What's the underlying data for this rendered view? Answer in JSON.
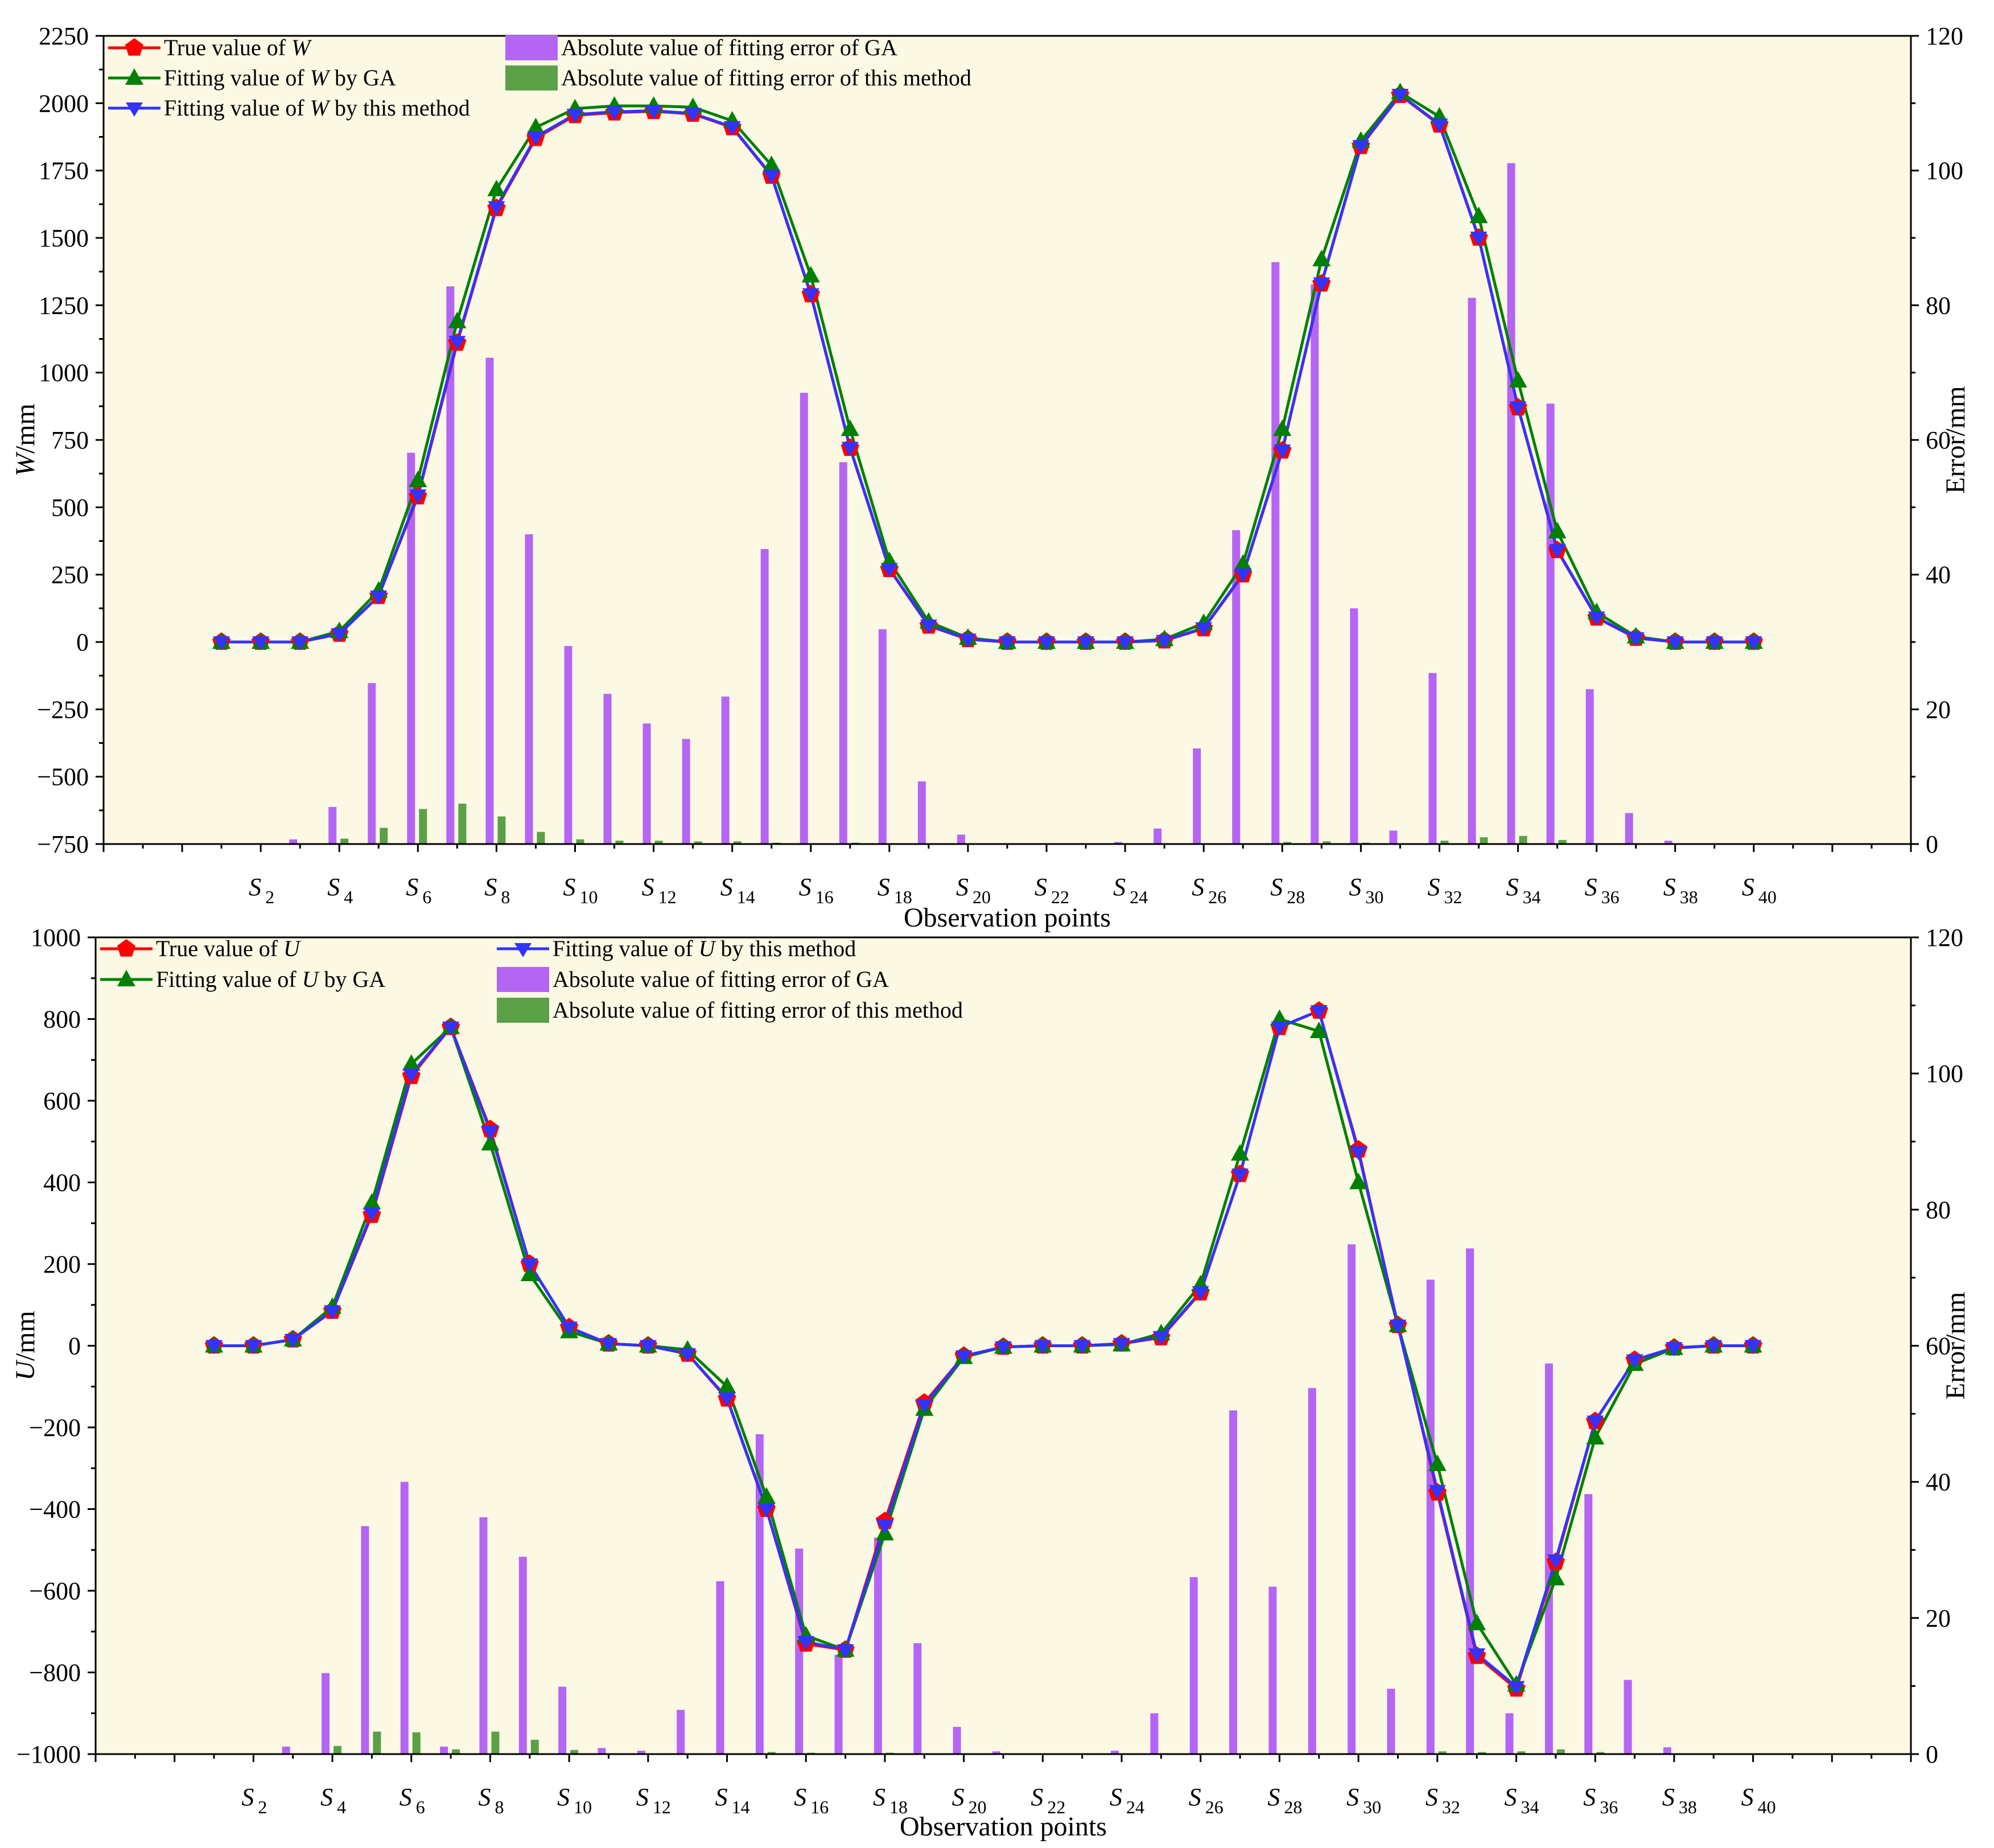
{
  "figure": {
    "xlabel": "Observation points"
  },
  "colors": {
    "true": "#ff0000",
    "ga": "#008000",
    "method": "#3333ff",
    "bar_ga": "#b565f3",
    "bar_method": "#5aa047",
    "plot_bg": "#fbf8e4"
  },
  "chart_data": [
    {
      "name": "W",
      "type": "line+bar",
      "title": "",
      "xlabel": "Observation points",
      "ylabel_var": "W",
      "ylabel_unit": "/mm",
      "y2label": "Error/mm",
      "ylim": [
        -750,
        2250
      ],
      "yticks": [
        "2250",
        "2000",
        "1750",
        "1500",
        "1250",
        "1000",
        "750",
        "500",
        "250",
        "0",
        "−250",
        "−500",
        "−750"
      ],
      "yticks_values": [
        2250,
        2000,
        1750,
        1500,
        1250,
        1000,
        750,
        500,
        250,
        0,
        -250,
        -500,
        -750
      ],
      "y2lim": [
        0,
        120
      ],
      "y2ticks": [
        "120",
        "100",
        "80",
        "60",
        "40",
        "20",
        "0"
      ],
      "y2ticks_values": [
        120,
        100,
        80,
        60,
        40,
        20,
        0
      ],
      "xlim": [
        -2,
        44
      ],
      "x": [
        1,
        2,
        3,
        4,
        5,
        6,
        7,
        8,
        9,
        10,
        11,
        12,
        13,
        14,
        15,
        16,
        17,
        18,
        19,
        20,
        21,
        22,
        23,
        24,
        25,
        26,
        27,
        28,
        29,
        30,
        31,
        32,
        33,
        34,
        35,
        36,
        37,
        38,
        39,
        40
      ],
      "xticks": [
        {
          "x": 2,
          "base": "S",
          "sub": "2"
        },
        {
          "x": 4,
          "base": "S",
          "sub": "4"
        },
        {
          "x": 6,
          "base": "S",
          "sub": "6"
        },
        {
          "x": 8,
          "base": "S",
          "sub": "8"
        },
        {
          "x": 10,
          "base": "S",
          "sub": "10"
        },
        {
          "x": 12,
          "base": "S",
          "sub": "12"
        },
        {
          "x": 14,
          "base": "S",
          "sub": "14"
        },
        {
          "x": 16,
          "base": "S",
          "sub": "16"
        },
        {
          "x": 18,
          "base": "S",
          "sub": "18"
        },
        {
          "x": 20,
          "base": "S",
          "sub": "20"
        },
        {
          "x": 22,
          "base": "S",
          "sub": "22"
        },
        {
          "x": 24,
          "base": "S",
          "sub": "24"
        },
        {
          "x": 26,
          "base": "S",
          "sub": "26"
        },
        {
          "x": 28,
          "base": "S",
          "sub": "28"
        },
        {
          "x": 30,
          "base": "S",
          "sub": "30"
        },
        {
          "x": 32,
          "base": "S",
          "sub": "32"
        },
        {
          "x": 34,
          "base": "S",
          "sub": "34"
        },
        {
          "x": 36,
          "base": "S",
          "sub": "36"
        },
        {
          "x": 38,
          "base": "S",
          "sub": "38"
        },
        {
          "x": 40,
          "base": "S",
          "sub": "40"
        }
      ],
      "legend": [
        {
          "key": "true",
          "pre": "True value of ",
          "var": "W",
          "post": ""
        },
        {
          "key": "ga",
          "pre": "Fitting value of ",
          "var": "W",
          "post": " by GA"
        },
        {
          "key": "method",
          "pre": "Fitting value of ",
          "var": "W",
          "post": " by this method"
        },
        {
          "key": "bar_ga",
          "pre": "Absolute value of fitting error of GA",
          "var": "",
          "post": ""
        },
        {
          "key": "bar_method",
          "pre": "Absolute value of fitting error of this method",
          "var": "",
          "post": ""
        }
      ],
      "series": [
        {
          "name": "True value of W",
          "key": "true",
          "values": [
            0,
            0,
            0,
            30,
            170,
            540,
            1110,
            1610,
            1870,
            1955,
            1965,
            1970,
            1960,
            1910,
            1730,
            1290,
            720,
            270,
            60,
            10,
            0,
            0,
            0,
            0,
            5,
            50,
            250,
            710,
            1330,
            1840,
            2030,
            1920,
            1500,
            870,
            340,
            90,
            15,
            0,
            0,
            0
          ]
        },
        {
          "name": "Fitting value of W by GA",
          "key": "ga",
          "values": [
            0,
            0,
            0,
            40,
            190,
            600,
            1190,
            1680,
            1910,
            1980,
            1990,
            1990,
            1985,
            1935,
            1770,
            1360,
            790,
            300,
            75,
            15,
            0,
            0,
            0,
            0,
            10,
            70,
            290,
            790,
            1420,
            1860,
            2040,
            1950,
            1580,
            970,
            410,
            110,
            20,
            0,
            0,
            0
          ]
        },
        {
          "name": "Fitting value of W by this method",
          "key": "method",
          "values": [
            0,
            0,
            0,
            30,
            170,
            545,
            1115,
            1615,
            1875,
            1958,
            1968,
            1972,
            1962,
            1912,
            1732,
            1292,
            722,
            272,
            62,
            10,
            0,
            0,
            0,
            0,
            5,
            52,
            252,
            712,
            1332,
            1842,
            2032,
            1922,
            1502,
            872,
            342,
            92,
            15,
            0,
            0,
            0
          ]
        }
      ],
      "bars": [
        {
          "name": "Absolute value of fitting error of GA",
          "key": "bar_ga",
          "values": [
            0,
            0,
            0.7,
            5.5,
            23.9,
            58.1,
            82.8,
            72.2,
            46.0,
            29.4,
            22.3,
            17.9,
            15.6,
            21.9,
            43.8,
            67.0,
            56.7,
            31.9,
            9.3,
            1.4,
            0,
            0,
            0,
            0.3,
            2.3,
            14.2,
            46.6,
            86.4,
            83.1,
            35.0,
            2.0,
            25.4,
            81.1,
            101.1,
            65.4,
            23.0,
            4.6,
            0.5,
            0,
            0
          ]
        },
        {
          "name": "Absolute value of fitting error of this method",
          "key": "bar_method",
          "values": [
            0,
            0,
            0,
            0.8,
            2.4,
            5.2,
            6.0,
            4.1,
            1.8,
            0.7,
            0.5,
            0.5,
            0.4,
            0.4,
            0.2,
            0.1,
            0.2,
            0.1,
            0,
            0,
            0,
            0,
            0,
            0,
            0,
            0.1,
            0.1,
            0.3,
            0.4,
            0.2,
            0.1,
            0.5,
            1.0,
            1.2,
            0.6,
            0.1,
            0,
            0,
            0,
            0
          ]
        }
      ]
    },
    {
      "name": "U",
      "type": "line+bar",
      "title": "",
      "xlabel": "Observation points",
      "ylabel_var": "U",
      "ylabel_unit": "/mm",
      "y2label": "Error/mm",
      "ylim": [
        -1000,
        1000
      ],
      "yticks": [
        "1000",
        "800",
        "600",
        "400",
        "200",
        "0",
        "−200",
        "−400",
        "−600",
        "−800",
        "−1000"
      ],
      "yticks_values": [
        1000,
        800,
        600,
        400,
        200,
        0,
        -200,
        -400,
        -600,
        -800,
        -1000
      ],
      "y2lim": [
        0,
        120
      ],
      "y2ticks": [
        "120",
        "100",
        "80",
        "60",
        "40",
        "20",
        "0"
      ],
      "y2ticks_values": [
        120,
        100,
        80,
        60,
        40,
        20,
        0
      ],
      "xlim": [
        -2,
        44
      ],
      "x": [
        1,
        2,
        3,
        4,
        5,
        6,
        7,
        8,
        9,
        10,
        11,
        12,
        13,
        14,
        15,
        16,
        17,
        18,
        19,
        20,
        21,
        22,
        23,
        24,
        25,
        26,
        27,
        28,
        29,
        30,
        31,
        32,
        33,
        34,
        35,
        36,
        37,
        38,
        39,
        40
      ],
      "xticks": [
        {
          "x": 2,
          "base": "S",
          "sub": "2"
        },
        {
          "x": 4,
          "base": "S",
          "sub": "4"
        },
        {
          "x": 6,
          "base": "S",
          "sub": "6"
        },
        {
          "x": 8,
          "base": "S",
          "sub": "8"
        },
        {
          "x": 10,
          "base": "S",
          "sub": "10"
        },
        {
          "x": 12,
          "base": "S",
          "sub": "12"
        },
        {
          "x": 14,
          "base": "S",
          "sub": "14"
        },
        {
          "x": 16,
          "base": "S",
          "sub": "16"
        },
        {
          "x": 18,
          "base": "S",
          "sub": "18"
        },
        {
          "x": 20,
          "base": "S",
          "sub": "20"
        },
        {
          "x": 22,
          "base": "S",
          "sub": "22"
        },
        {
          "x": 24,
          "base": "S",
          "sub": "24"
        },
        {
          "x": 26,
          "base": "S",
          "sub": "26"
        },
        {
          "x": 28,
          "base": "S",
          "sub": "28"
        },
        {
          "x": 30,
          "base": "S",
          "sub": "30"
        },
        {
          "x": 32,
          "base": "S",
          "sub": "32"
        },
        {
          "x": 34,
          "base": "S",
          "sub": "34"
        },
        {
          "x": 36,
          "base": "S",
          "sub": "36"
        },
        {
          "x": 38,
          "base": "S",
          "sub": "38"
        },
        {
          "x": 40,
          "base": "S",
          "sub": "40"
        }
      ],
      "legend": [
        {
          "key": "true",
          "pre": "True value of ",
          "var": "U",
          "post": ""
        },
        {
          "key": "ga",
          "pre": "Fitting value of ",
          "var": "U",
          "post": " by GA"
        },
        {
          "key": "method",
          "pre": "Fitting value of ",
          "var": "U",
          "post": " by this method"
        },
        {
          "key": "bar_ga",
          "pre": "Absolute value of fitting error of GA",
          "var": "",
          "post": ""
        },
        {
          "key": "bar_method",
          "pre": "Absolute value of fitting error of this method",
          "var": "",
          "post": ""
        }
      ],
      "series": [
        {
          "name": "True value of U",
          "key": "true",
          "values": [
            0,
            0,
            15,
            85,
            320,
            660,
            780,
            530,
            200,
            45,
            5,
            0,
            -20,
            -130,
            -400,
            -730,
            -745,
            -430,
            -140,
            -25,
            -3,
            0,
            0,
            5,
            20,
            130,
            420,
            780,
            820,
            480,
            50,
            -360,
            -760,
            -840,
            -530,
            -185,
            -35,
            -5,
            0,
            0
          ]
        },
        {
          "name": "Fitting value of U by GA",
          "key": "ga",
          "values": [
            0,
            0,
            15,
            95,
            350,
            690,
            780,
            495,
            175,
            35,
            5,
            0,
            -10,
            -100,
            -370,
            -710,
            -745,
            -460,
            -155,
            -28,
            -3,
            0,
            0,
            3,
            30,
            150,
            470,
            800,
            770,
            400,
            50,
            -290,
            -680,
            -830,
            -570,
            -225,
            -45,
            -6,
            0,
            0
          ]
        },
        {
          "name": "Fitting value of U by this method",
          "key": "method",
          "values": [
            0,
            0,
            15,
            85,
            325,
            665,
            780,
            525,
            200,
            45,
            5,
            0,
            -20,
            -128,
            -400,
            -725,
            -745,
            -440,
            -145,
            -25,
            -3,
            0,
            0,
            5,
            22,
            132,
            420,
            780,
            820,
            475,
            50,
            -355,
            -755,
            -835,
            -525,
            -185,
            -35,
            -5,
            0,
            0
          ]
        }
      ],
      "bars": [
        {
          "name": "Absolute value of fitting error of GA",
          "key": "bar_ga",
          "values": [
            0,
            0,
            1.1,
            11.9,
            33.5,
            40.0,
            1.1,
            34.8,
            29.0,
            9.9,
            0.9,
            0.5,
            6.5,
            25.4,
            47.0,
            30.2,
            14.6,
            31.8,
            16.3,
            4.0,
            0.4,
            0,
            0,
            0.5,
            6.0,
            26.0,
            50.5,
            24.6,
            53.8,
            74.9,
            9.6,
            69.7,
            74.3,
            6.0,
            57.4,
            38.2,
            10.9,
            1.0,
            0.1,
            0
          ]
        },
        {
          "name": "Absolute value of fitting error of this method",
          "key": "bar_method",
          "values": [
            0,
            0,
            0,
            1.2,
            3.3,
            3.2,
            0.7,
            3.3,
            2.1,
            0.6,
            0.1,
            0.1,
            0,
            0.1,
            0.3,
            0.2,
            0.1,
            0.2,
            0.1,
            0,
            0,
            0,
            0,
            0,
            0.1,
            0.1,
            0.1,
            0.1,
            0.1,
            0.1,
            0.1,
            0.4,
            0.3,
            0.4,
            0.7,
            0.3,
            0.1,
            0,
            0,
            0
          ]
        }
      ]
    }
  ]
}
